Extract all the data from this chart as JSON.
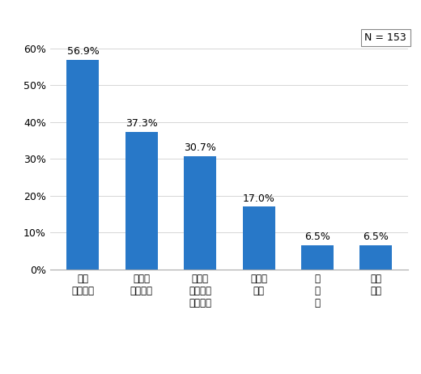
{
  "categories": [
    "株式\n投賄信託",
    "公社債\n投賄信託",
    "外国で\n作られた\n投賄信託",
    "不動産\n投信",
    "Ｅ\nＴ\nＦ",
    "種類\n不明"
  ],
  "values": [
    56.9,
    37.3,
    30.7,
    17.0,
    6.5,
    6.5
  ],
  "labels": [
    "56.9%",
    "37.3%",
    "30.7%",
    "17.0%",
    "6.5%",
    "6.5%"
  ],
  "bar_color": "#2878C8",
  "ylim": [
    0,
    65
  ],
  "yticks": [
    0,
    10,
    20,
    30,
    40,
    50,
    60
  ],
  "yticklabels": [
    "0%",
    "10%",
    "20%",
    "30%",
    "40%",
    "50%",
    "60%"
  ],
  "n_label": "N = 153",
  "background_color": "#ffffff",
  "font_size_label": 9,
  "font_size_tick": 9,
  "font_size_n": 9,
  "font_size_xticklabel": 8.5
}
